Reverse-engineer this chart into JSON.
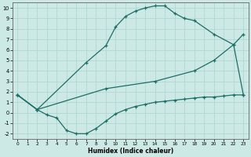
{
  "xlabel": "Humidex (Indice chaleur)",
  "xlim": [
    -0.5,
    23.5
  ],
  "ylim": [
    -2.5,
    10.5
  ],
  "yticks": [
    -2,
    -1,
    0,
    1,
    2,
    3,
    4,
    5,
    6,
    7,
    8,
    9,
    10
  ],
  "xticks": [
    0,
    1,
    2,
    3,
    4,
    5,
    6,
    7,
    8,
    9,
    10,
    11,
    12,
    13,
    14,
    15,
    16,
    17,
    18,
    19,
    20,
    21,
    22,
    23
  ],
  "background_color": "#cce9e5",
  "grid_color": "#b0d8d3",
  "line_color": "#1e6e65",
  "line1_x": [
    0,
    2,
    3,
    4,
    5,
    6,
    7,
    8,
    9,
    10,
    11,
    12,
    13,
    14,
    15,
    16,
    17,
    18,
    19,
    20,
    21,
    22,
    23
  ],
  "line1_y": [
    1.7,
    0.3,
    -0.2,
    -0.5,
    -1.7,
    -2.0,
    -2.0,
    -1.5,
    -0.8,
    -0.1,
    0.3,
    0.6,
    0.8,
    1.0,
    1.1,
    1.2,
    1.3,
    1.4,
    1.5,
    1.5,
    1.6,
    1.7,
    1.7
  ],
  "line2_x": [
    0,
    2,
    7,
    9,
    10,
    11,
    12,
    13,
    14,
    15,
    16,
    17,
    18,
    20,
    22,
    23
  ],
  "line2_y": [
    1.7,
    0.3,
    4.8,
    6.4,
    8.2,
    9.2,
    9.7,
    10.0,
    10.2,
    10.2,
    9.5,
    9.0,
    8.8,
    7.5,
    6.5,
    1.7
  ],
  "line3_x": [
    0,
    2,
    9,
    14,
    18,
    20,
    22,
    23
  ],
  "line3_y": [
    1.7,
    0.3,
    2.3,
    3.0,
    4.0,
    5.0,
    6.5,
    7.5
  ]
}
